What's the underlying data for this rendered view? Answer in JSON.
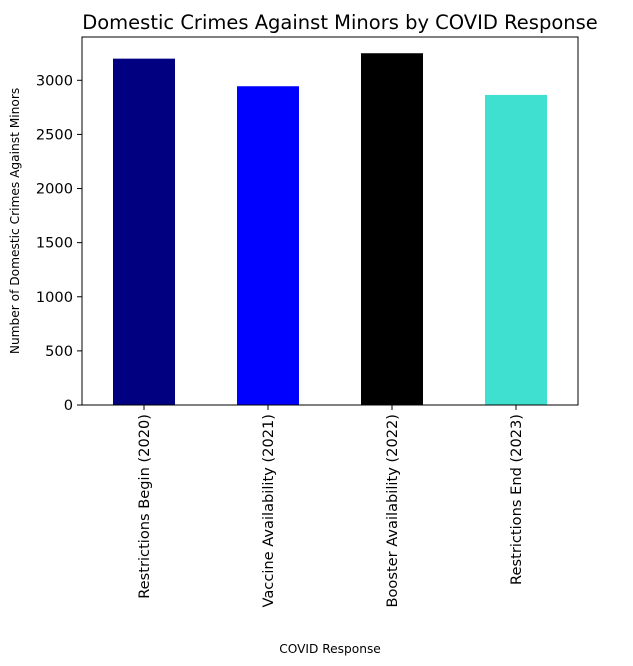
{
  "chart_data": {
    "type": "bar",
    "title": "Domestic Crimes Against Minors by COVID Response",
    "xlabel": "COVID Response",
    "ylabel": "Number of Domestic Crimes Against Minors",
    "categories": [
      "Restrictions Begin (2020)",
      "Vaccine Availability (2021)",
      "Booster Availability (2022)",
      "Restrictions End (2023)"
    ],
    "values": [
      3200,
      2945,
      3250,
      2865
    ],
    "colors": [
      "#000080",
      "#0000ff",
      "#000000",
      "#40e0d0"
    ],
    "ylim": [
      0,
      3400
    ],
    "yticks": [
      0,
      500,
      1000,
      1500,
      2000,
      2500,
      3000
    ],
    "grid": false,
    "legend": "none"
  }
}
